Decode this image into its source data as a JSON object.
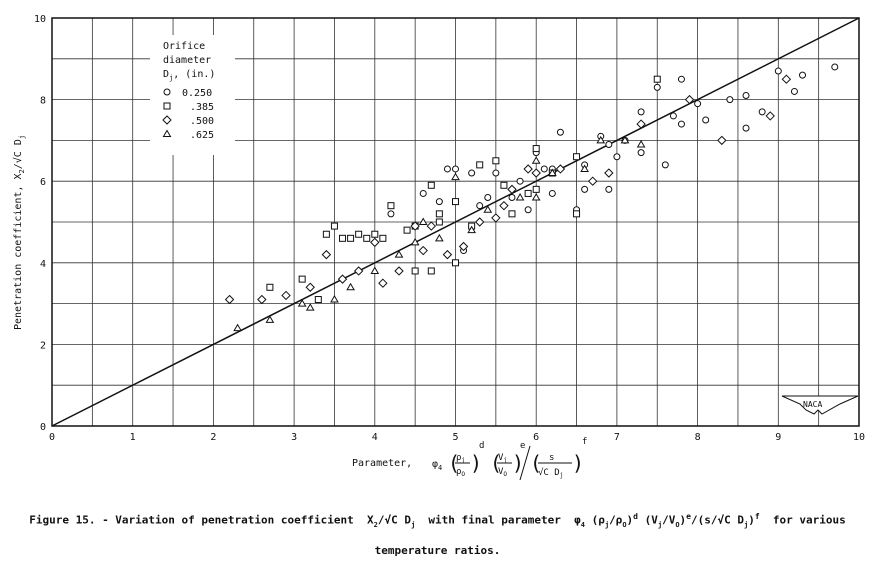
{
  "chart_data": {
    "type": "scatter",
    "title": "Figure 15. - Variation of penetration coefficient X2/√C Dj with final parameter φ4 (ρj/ρ0)^d (Vj/V0)^e / (s/(√C Dj))^f for various temperature ratios.",
    "xlabel": "Parameter, φ4 (ρj/ρ0)^d (Vj/V0)^e / (s/(√C Dj))^f",
    "ylabel": "Penetration coefficient, X2/√C Dj",
    "xlim": [
      0,
      10
    ],
    "ylim": [
      0,
      10
    ],
    "x_ticks": [
      0,
      1,
      2,
      3,
      4,
      5,
      6,
      7,
      8,
      9,
      10
    ],
    "y_ticks": [
      0,
      2,
      4,
      6,
      8,
      10
    ],
    "grid": true,
    "grid_x_step": 0.5,
    "grid_y_step": 1,
    "legend_title": "Orifice diameter Dj, (in.)",
    "legend_position": "upper-left",
    "reference_line": {
      "label": "line of agreement",
      "x": [
        0,
        10
      ],
      "y": [
        0,
        10
      ]
    },
    "series": [
      {
        "name": "0.250",
        "marker": "circle",
        "points": [
          [
            5.0,
            6.3
          ],
          [
            5.2,
            6.2
          ],
          [
            5.4,
            5.6
          ],
          [
            5.3,
            5.4
          ],
          [
            5.7,
            5.6
          ],
          [
            5.9,
            5.3
          ],
          [
            6.0,
            6.7
          ],
          [
            6.2,
            5.7
          ],
          [
            6.3,
            7.2
          ],
          [
            6.5,
            5.3
          ],
          [
            6.6,
            6.4
          ],
          [
            6.8,
            7.1
          ],
          [
            6.9,
            6.9
          ],
          [
            7.0,
            6.6
          ],
          [
            7.1,
            7.0
          ],
          [
            7.3,
            6.7
          ],
          [
            7.3,
            7.7
          ],
          [
            7.5,
            8.3
          ],
          [
            7.6,
            6.4
          ],
          [
            7.7,
            7.6
          ],
          [
            7.8,
            7.4
          ],
          [
            7.8,
            8.5
          ],
          [
            8.0,
            7.9
          ],
          [
            8.1,
            7.5
          ],
          [
            8.4,
            8.0
          ],
          [
            8.6,
            7.3
          ],
          [
            8.6,
            8.1
          ],
          [
            8.8,
            7.7
          ],
          [
            9.0,
            8.7
          ],
          [
            9.2,
            8.2
          ],
          [
            9.3,
            8.6
          ],
          [
            9.7,
            8.8
          ],
          [
            6.6,
            5.8
          ],
          [
            6.9,
            5.8
          ],
          [
            5.8,
            6.0
          ],
          [
            5.5,
            6.2
          ],
          [
            4.6,
            5.7
          ],
          [
            4.9,
            6.3
          ],
          [
            4.2,
            5.2
          ],
          [
            4.8,
            5.5
          ],
          [
            5.1,
            4.3
          ],
          [
            6.1,
            6.3
          ],
          [
            6.2,
            6.3
          ]
        ]
      },
      {
        "name": ".385",
        "marker": "square",
        "points": [
          [
            2.7,
            3.4
          ],
          [
            3.1,
            3.6
          ],
          [
            3.4,
            4.7
          ],
          [
            3.5,
            4.9
          ],
          [
            3.6,
            4.6
          ],
          [
            3.8,
            4.7
          ],
          [
            3.7,
            4.6
          ],
          [
            3.9,
            4.6
          ],
          [
            4.0,
            4.7
          ],
          [
            4.1,
            4.6
          ],
          [
            4.2,
            5.4
          ],
          [
            4.4,
            4.8
          ],
          [
            4.5,
            4.9
          ],
          [
            4.5,
            3.8
          ],
          [
            4.7,
            5.9
          ],
          [
            4.7,
            3.8
          ],
          [
            4.8,
            5.2
          ],
          [
            5.0,
            4.0
          ],
          [
            5.0,
            5.5
          ],
          [
            5.2,
            4.9
          ],
          [
            5.3,
            6.4
          ],
          [
            5.5,
            6.5
          ],
          [
            5.6,
            5.9
          ],
          [
            5.7,
            5.2
          ],
          [
            5.9,
            5.7
          ],
          [
            6.0,
            5.8
          ],
          [
            6.0,
            6.8
          ],
          [
            6.2,
            6.2
          ],
          [
            6.5,
            5.2
          ],
          [
            6.5,
            6.6
          ],
          [
            7.5,
            8.5
          ],
          [
            3.3,
            3.1
          ],
          [
            4.8,
            5.0
          ]
        ]
      },
      {
        "name": ".500",
        "marker": "diamond",
        "points": [
          [
            2.2,
            3.1
          ],
          [
            2.6,
            3.1
          ],
          [
            2.9,
            3.2
          ],
          [
            3.2,
            3.4
          ],
          [
            3.4,
            4.2
          ],
          [
            3.6,
            3.6
          ],
          [
            3.8,
            3.8
          ],
          [
            4.0,
            4.5
          ],
          [
            4.1,
            3.5
          ],
          [
            4.3,
            3.8
          ],
          [
            4.6,
            4.3
          ],
          [
            4.7,
            4.9
          ],
          [
            4.9,
            4.2
          ],
          [
            5.1,
            4.4
          ],
          [
            5.3,
            5.0
          ],
          [
            5.6,
            5.4
          ],
          [
            5.7,
            5.8
          ],
          [
            5.9,
            6.3
          ],
          [
            6.0,
            6.2
          ],
          [
            6.3,
            6.3
          ],
          [
            6.7,
            6.0
          ],
          [
            6.9,
            6.2
          ],
          [
            7.3,
            7.4
          ],
          [
            7.9,
            8.0
          ],
          [
            8.3,
            7.0
          ],
          [
            8.9,
            7.6
          ],
          [
            9.1,
            8.5
          ],
          [
            4.5,
            4.9
          ],
          [
            5.5,
            5.1
          ]
        ]
      },
      {
        "name": ".625",
        "marker": "triangle",
        "points": [
          [
            2.3,
            2.4
          ],
          [
            2.7,
            2.6
          ],
          [
            3.1,
            3.0
          ],
          [
            3.2,
            2.9
          ],
          [
            3.5,
            3.1
          ],
          [
            3.7,
            3.4
          ],
          [
            4.0,
            3.8
          ],
          [
            4.3,
            4.2
          ],
          [
            4.5,
            4.5
          ],
          [
            4.8,
            4.6
          ],
          [
            5.2,
            4.8
          ],
          [
            5.4,
            5.3
          ],
          [
            5.8,
            5.6
          ],
          [
            6.0,
            6.5
          ],
          [
            6.0,
            5.6
          ],
          [
            6.2,
            6.2
          ],
          [
            6.6,
            6.3
          ],
          [
            6.8,
            7.0
          ],
          [
            7.1,
            7.0
          ],
          [
            7.3,
            6.9
          ],
          [
            5.0,
            6.1
          ],
          [
            4.6,
            5.0
          ]
        ]
      }
    ]
  },
  "axes": {
    "x_label_prefix": "Parameter,",
    "y_label": "Penetration coefficient, X",
    "y_label_suffix": "/√C D"
  },
  "legend": {
    "title_line1": "Orifice",
    "title_line2": "diameter",
    "title_line3": "D",
    "title_line3_suffix": ", (in.)",
    "entries": [
      {
        "label": "0.250",
        "marker": "circle"
      },
      {
        "label": ".385",
        "marker": "square"
      },
      {
        "label": ".500",
        "marker": "diamond"
      },
      {
        "label": ".625",
        "marker": "triangle"
      }
    ]
  },
  "logo": {
    "text": "NACA"
  },
  "caption": {
    "line1_a": "Figure 15. - Variation of penetration coefficient",
    "line1_b": "with final parameter",
    "line1_c": "for various",
    "line2": "temperature ratios."
  }
}
